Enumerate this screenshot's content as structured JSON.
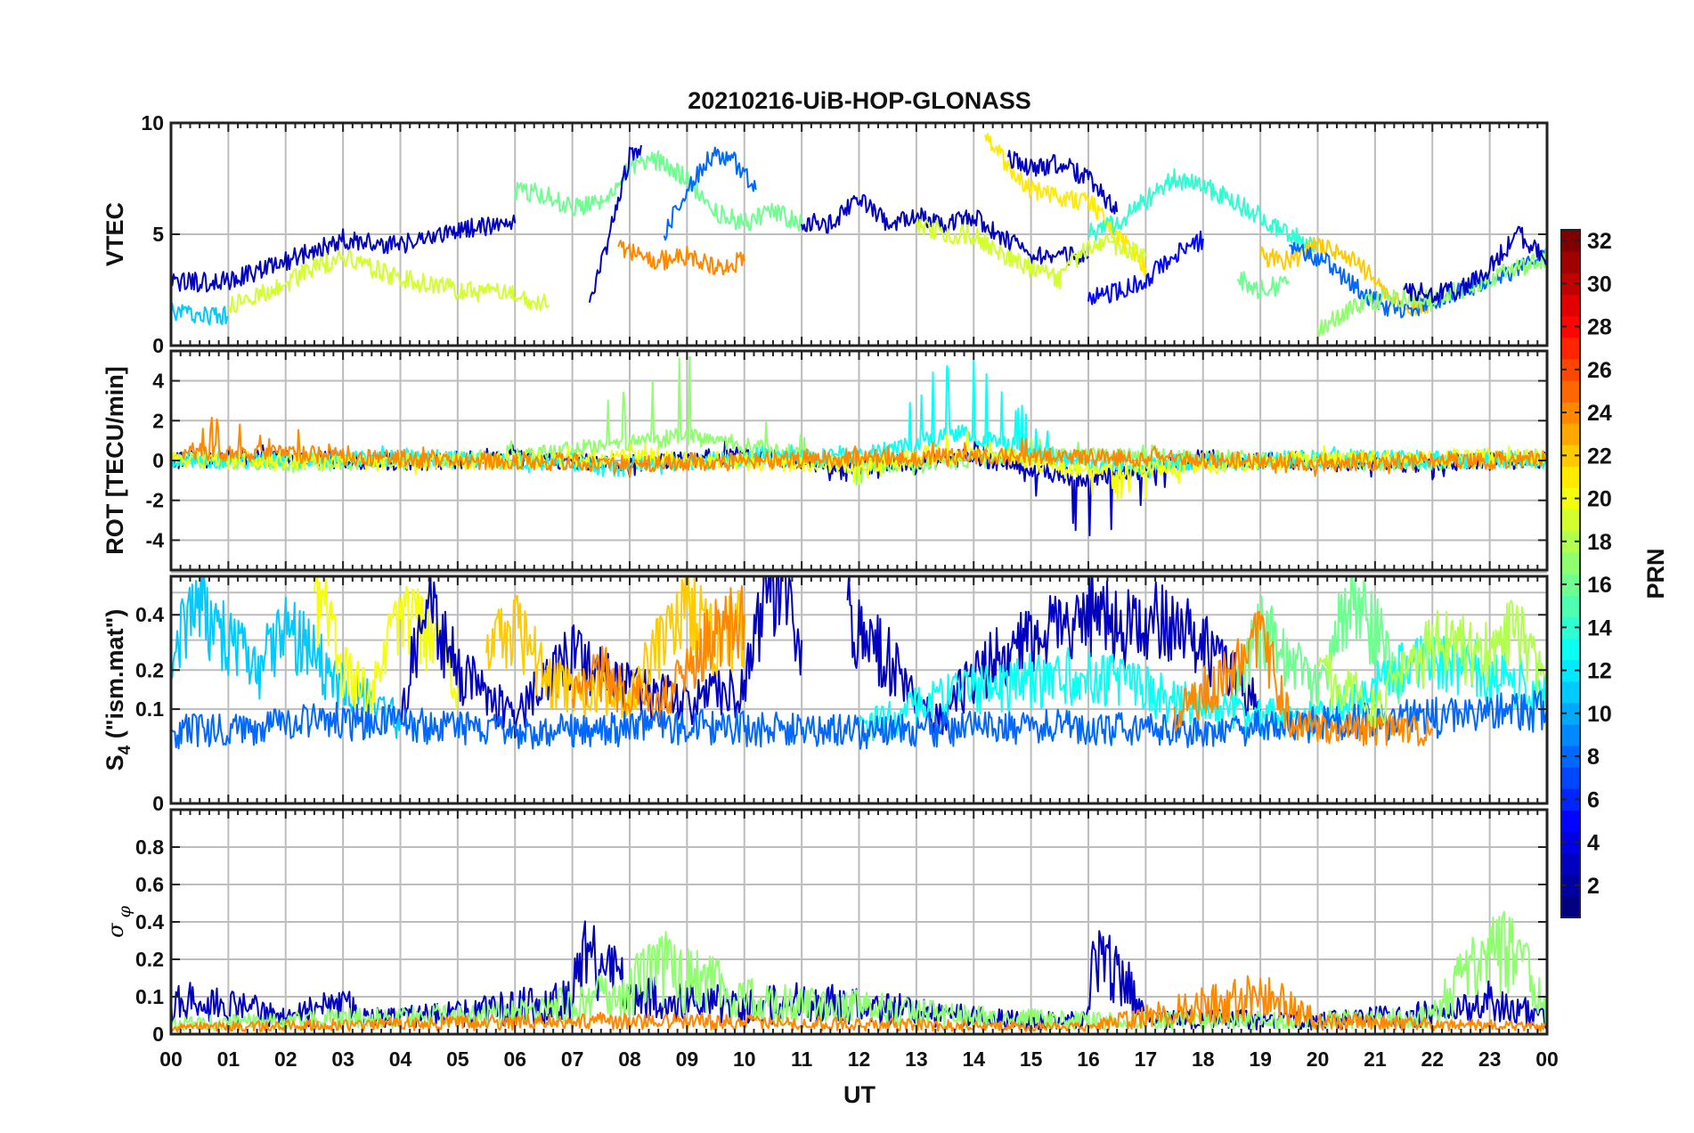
{
  "chart_data": {
    "type": "line",
    "title": "20210216-UiB-HOP-GLONASS",
    "xlabel": "UT",
    "xlim": [
      0,
      24
    ],
    "x_tick_labels": [
      "00",
      "01",
      "02",
      "03",
      "04",
      "05",
      "06",
      "07",
      "08",
      "09",
      "10",
      "11",
      "12",
      "13",
      "14",
      "15",
      "16",
      "17",
      "18",
      "19",
      "20",
      "21",
      "22",
      "23",
      "00"
    ],
    "grid": true,
    "colorbar": {
      "label": "PRN",
      "range": [
        1,
        32
      ],
      "tick_labels": [
        "2",
        "4",
        "6",
        "8",
        "10",
        "12",
        "14",
        "16",
        "18",
        "20",
        "22",
        "24",
        "26",
        "28",
        "30",
        "32"
      ],
      "placement": "right",
      "colormap": "jet"
    },
    "panels": [
      {
        "ylabel": "VTEC",
        "ylim": [
          0,
          10
        ],
        "y_ticks": [
          0,
          5,
          10
        ],
        "y_tick_labels": [
          "0",
          "5",
          "10"
        ],
        "series": [
          {
            "prn": 3,
            "x": [
              0.0,
              1.0,
              2.0,
              3.0,
              4.0,
              5.0,
              6.0
            ],
            "y": [
              2.8,
              2.9,
              3.8,
              4.8,
              4.5,
              5.2,
              5.5
            ]
          },
          {
            "prn": 11,
            "x": [
              0.0,
              0.5,
              1.0
            ],
            "y": [
              1.5,
              1.4,
              1.3
            ]
          },
          {
            "prn": 19,
            "x": [
              1.0,
              2.0,
              2.5,
              3.0,
              4.0,
              5.0,
              6.0,
              6.6
            ],
            "y": [
              1.7,
              2.8,
              3.5,
              4.0,
              3.0,
              2.5,
              2.3,
              1.8
            ]
          },
          {
            "prn": 16,
            "x": [
              6.0,
              6.5,
              7.0,
              7.5,
              8.0,
              8.5,
              9.0,
              9.5,
              10.0,
              10.5,
              11.0
            ],
            "y": [
              7.0,
              6.8,
              6.2,
              6.5,
              8.0,
              8.3,
              7.5,
              6.0,
              5.5,
              6.0,
              5.5
            ]
          },
          {
            "prn": 3,
            "x": [
              7.3,
              7.6,
              8.0,
              8.2
            ],
            "y": [
              2.0,
              4.5,
              8.5,
              9.0
            ]
          },
          {
            "prn": 8,
            "x": [
              8.6,
              9.0,
              9.4,
              9.8,
              10.2
            ],
            "y": [
              5.0,
              7.0,
              8.5,
              8.3,
              7.0
            ]
          },
          {
            "prn": 24,
            "x": [
              7.8,
              8.5,
              9.0,
              9.5,
              10.0
            ],
            "y": [
              4.5,
              3.8,
              4.0,
              3.5,
              3.8
            ]
          },
          {
            "prn": 3,
            "x": [
              11.0,
              11.5,
              12.0,
              12.5,
              13.0,
              13.5,
              14.0,
              15.0,
              16.0
            ],
            "y": [
              5.5,
              5.5,
              6.5,
              5.5,
              5.8,
              5.5,
              5.8,
              4.0,
              4.0
            ]
          },
          {
            "prn": 19,
            "x": [
              13.0,
              13.5,
              14.0,
              14.5,
              15.0,
              15.5,
              16.0,
              16.5,
              17.0
            ],
            "y": [
              5.5,
              5.0,
              5.0,
              4.0,
              3.5,
              3.0,
              4.5,
              4.5,
              4.0
            ]
          },
          {
            "prn": 21,
            "x": [
              14.2,
              14.6,
              15.0,
              15.6,
              16.0,
              16.5,
              17.0
            ],
            "y": [
              9.5,
              8.0,
              7.0,
              6.5,
              6.5,
              5.0,
              3.5
            ]
          },
          {
            "prn": 3,
            "x": [
              14.6,
              15.0,
              15.5,
              16.0,
              16.5
            ],
            "y": [
              8.5,
              8.0,
              8.2,
              7.5,
              6.0
            ]
          },
          {
            "prn": 14,
            "x": [
              16.0,
              16.5,
              17.0,
              17.5,
              18.0,
              18.5,
              19.0,
              19.5,
              20.0
            ],
            "y": [
              5.0,
              5.5,
              6.5,
              7.5,
              7.2,
              6.5,
              5.8,
              5.0,
              4.5
            ]
          },
          {
            "prn": 5,
            "x": [
              16.0,
              16.5,
              17.0,
              17.5,
              18.0
            ],
            "y": [
              2.0,
              2.5,
              3.0,
              4.0,
              4.8
            ]
          },
          {
            "prn": 16,
            "x": [
              18.6,
              19.0,
              19.5
            ],
            "y": [
              3.0,
              2.5,
              2.8
            ]
          },
          {
            "prn": 22,
            "x": [
              19.0,
              19.5,
              20.0,
              20.5,
              21.0,
              21.5,
              22.0
            ],
            "y": [
              4.0,
              3.8,
              4.5,
              4.0,
              3.0,
              1.6,
              2.0
            ]
          },
          {
            "prn": 8,
            "x": [
              19.5,
              20.0,
              20.5,
              21.0,
              21.5,
              22.0,
              22.5,
              23.0,
              23.5,
              24.0
            ],
            "y": [
              4.5,
              4.0,
              3.0,
              2.0,
              1.5,
              2.0,
              2.5,
              3.0,
              3.5,
              4.0
            ]
          },
          {
            "prn": 17,
            "x": [
              20.0,
              20.5,
              21.0,
              21.5,
              22.0,
              22.5,
              23.0,
              23.5,
              24.0
            ],
            "y": [
              0.8,
              1.5,
              2.0,
              2.2,
              2.0,
              2.5,
              3.0,
              3.5,
              4.0
            ]
          },
          {
            "prn": 3,
            "x": [
              21.5,
              22.0,
              22.5,
              23.0,
              23.5,
              24.0
            ],
            "y": [
              2.5,
              2.3,
              2.5,
              3.5,
              5.0,
              4.0
            ]
          }
        ]
      },
      {
        "ylabel": "ROT [TECU/min]",
        "ylim": [
          -5.5,
          5.5
        ],
        "y_ticks": [
          -4,
          -2,
          0,
          2,
          4
        ],
        "y_tick_labels": [
          "-4",
          "-2",
          "0",
          "2",
          "4"
        ],
        "series": [
          {
            "prn": 3,
            "x": [
              0.0,
              2.0,
              4.0,
              6.0,
              8.0,
              10.0,
              11.8,
              14.0,
              16.0,
              18.0,
              20.0,
              22.0,
              24.0
            ],
            "y": [
              0.1,
              0.5,
              -0.3,
              0.4,
              -0.5,
              1.0,
              -1.5,
              0.8,
              -4.0,
              0.5,
              -0.2,
              -0.6,
              0.3
            ]
          },
          {
            "prn": 17,
            "x": [
              0.0,
              3.0,
              6.0,
              9.0,
              12.0,
              15.0,
              18.0,
              21.0,
              24.0
            ],
            "y": [
              0.2,
              -0.5,
              0.6,
              5.0,
              -1.0,
              0.8,
              0.5,
              -0.3,
              0.4
            ]
          },
          {
            "prn": 13,
            "x": [
              0.0,
              4.0,
              8.0,
              12.0,
              13.8,
              16.0,
              20.0,
              24.0
            ],
            "y": [
              0.0,
              0.4,
              -0.6,
              0.9,
              5.5,
              -1.0,
              0.3,
              0.2
            ]
          },
          {
            "prn": 20,
            "x": [
              0.0,
              4.0,
              8.0,
              12.0,
              14.0,
              16.0,
              20.0,
              24.0
            ],
            "y": [
              0.1,
              -0.3,
              0.5,
              -0.8,
              1.5,
              -2.0,
              0.3,
              0.5
            ]
          },
          {
            "prn": 24,
            "x": [
              0.2,
              4.0,
              8.0,
              12.0,
              16.0,
              20.0,
              24.0
            ],
            "y": [
              2.0,
              0.3,
              -0.5,
              0.4,
              0.8,
              -0.4,
              0.2
            ]
          }
        ]
      },
      {
        "ylabel": "S4 (\"ism.mat\")",
        "ylim": [
          0,
          0.58
        ],
        "y_ticks": [
          0,
          0.1,
          0.2,
          0.4
        ],
        "y_tick_labels": [
          "0",
          "0.1",
          "0.2",
          "0.4"
        ],
        "series": [
          {
            "prn": 11,
            "x": [
              0.0,
              0.5,
              1.0,
              1.5,
              2.0,
              3.0,
              4.0
            ],
            "y": [
              0.25,
              0.45,
              0.3,
              0.2,
              0.35,
              0.15,
              0.08
            ]
          },
          {
            "prn": 20,
            "x": [
              2.5,
              2.7,
              3.0,
              3.5,
              4.0,
              4.5,
              5.0
            ],
            "y": [
              0.5,
              0.4,
              0.2,
              0.12,
              0.4,
              0.35,
              0.15
            ]
          },
          {
            "prn": 3,
            "x": [
              4.0,
              4.5,
              5.0,
              6.0,
              7.0,
              8.0,
              9.0,
              10.0,
              10.5,
              11.0
            ],
            "y": [
              0.08,
              0.45,
              0.2,
              0.08,
              0.25,
              0.15,
              0.12,
              0.15,
              0.58,
              0.3
            ]
          },
          {
            "prn": 22,
            "x": [
              5.5,
              6.0,
              6.5,
              7.0,
              8.0,
              9.0,
              9.5,
              10.0
            ],
            "y": [
              0.25,
              0.35,
              0.2,
              0.15,
              0.12,
              0.45,
              0.3,
              0.38
            ]
          },
          {
            "prn": 24,
            "x": [
              7.0,
              7.5,
              8.0,
              8.5,
              9.0,
              9.5,
              10.0
            ],
            "y": [
              0.12,
              0.2,
              0.15,
              0.1,
              0.2,
              0.35,
              0.4
            ]
          },
          {
            "prn": 3,
            "x": [
              11.8,
              12.0,
              12.5,
              13.0,
              13.5,
              14.0,
              15.0,
              16.0,
              16.5,
              17.0,
              18.0,
              19.0
            ],
            "y": [
              0.45,
              0.35,
              0.25,
              0.1,
              0.08,
              0.2,
              0.3,
              0.45,
              0.35,
              0.4,
              0.3,
              0.1
            ]
          },
          {
            "prn": 16,
            "x": [
              18.5,
              19.0,
              20.0,
              20.5,
              21.0,
              21.5
            ],
            "y": [
              0.1,
              0.35,
              0.15,
              0.45,
              0.35,
              0.15
            ]
          },
          {
            "prn": 13,
            "x": [
              12.0,
              14.0,
              16.0,
              18.0,
              20.0,
              22.0,
              24.0
            ],
            "y": [
              0.06,
              0.15,
              0.2,
              0.1,
              0.08,
              0.25,
              0.15
            ]
          },
          {
            "prn": 8,
            "x": [
              0.0,
              3.0,
              6.0,
              9.0,
              12.0,
              15.0,
              18.0,
              21.0,
              24.0
            ],
            "y": [
              0.06,
              0.08,
              0.06,
              0.07,
              0.06,
              0.07,
              0.06,
              0.08,
              0.1
            ]
          },
          {
            "prn": 24,
            "x": [
              17.5,
              18.5,
              19.0,
              19.5,
              20.0,
              21.0,
              22.0
            ],
            "y": [
              0.1,
              0.2,
              0.3,
              0.08,
              0.06,
              0.07,
              0.06
            ]
          },
          {
            "prn": 18,
            "x": [
              20.0,
              21.0,
              22.0,
              23.0,
              23.5,
              24.0
            ],
            "y": [
              0.2,
              0.1,
              0.3,
              0.25,
              0.35,
              0.12
            ]
          }
        ]
      },
      {
        "ylabel": "σφ",
        "ylim": [
          0,
          1
        ],
        "y_ticks": [
          0,
          0.1,
          0.2,
          0.4,
          0.6,
          0.8
        ],
        "y_tick_labels": [
          "0",
          "0.1",
          "0.2",
          "0.4",
          "0.6",
          "0.8"
        ],
        "series": [
          {
            "prn": 3,
            "x": [
              0.0,
              1.0,
              2.0,
              3.0,
              4.0,
              5.0,
              6.0,
              7.0,
              7.2,
              8.0,
              9.0,
              10.0,
              11.0,
              12.0,
              13.0,
              14.0,
              15.0,
              16.0,
              16.1,
              17.0,
              18.0,
              19.0,
              20.0,
              21.0,
              22.0,
              23.0,
              24.0
            ],
            "y": [
              0.1,
              0.08,
              0.06,
              0.08,
              0.05,
              0.06,
              0.08,
              0.1,
              0.3,
              0.12,
              0.1,
              0.08,
              0.1,
              0.08,
              0.07,
              0.05,
              0.04,
              0.05,
              0.33,
              0.04,
              0.05,
              0.04,
              0.04,
              0.05,
              0.06,
              0.1,
              0.05
            ]
          },
          {
            "prn": 17,
            "x": [
              0.0,
              2.0,
              4.0,
              6.0,
              8.0,
              8.5,
              9.0,
              10.0,
              12.0,
              14.0,
              16.0,
              18.0,
              20.0,
              22.0,
              23.3,
              24.0
            ],
            "y": [
              0.03,
              0.04,
              0.05,
              0.06,
              0.12,
              0.25,
              0.18,
              0.1,
              0.08,
              0.05,
              0.04,
              0.04,
              0.04,
              0.05,
              0.35,
              0.05
            ]
          },
          {
            "prn": 24,
            "x": [
              0.0,
              4.0,
              8.0,
              12.0,
              16.0,
              19.0,
              20.0,
              22.0,
              24.0
            ],
            "y": [
              0.02,
              0.03,
              0.04,
              0.03,
              0.02,
              0.12,
              0.04,
              0.03,
              0.02
            ]
          }
        ]
      }
    ]
  }
}
